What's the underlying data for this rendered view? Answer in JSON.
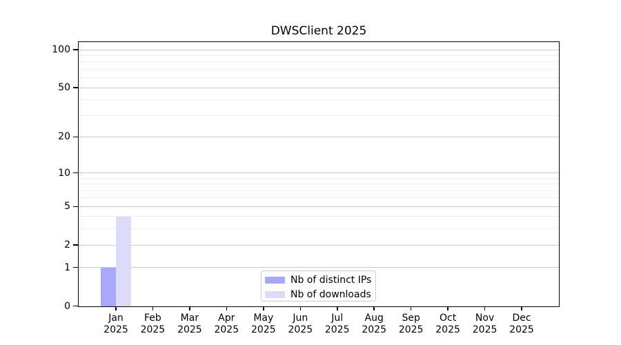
{
  "chart_data": {
    "type": "bar",
    "title": "DWSClient 2025",
    "categories": [
      {
        "month": "Jan",
        "year": "2025"
      },
      {
        "month": "Feb",
        "year": "2025"
      },
      {
        "month": "Mar",
        "year": "2025"
      },
      {
        "month": "Apr",
        "year": "2025"
      },
      {
        "month": "May",
        "year": "2025"
      },
      {
        "month": "Jun",
        "year": "2025"
      },
      {
        "month": "Jul",
        "year": "2025"
      },
      {
        "month": "Aug",
        "year": "2025"
      },
      {
        "month": "Sep",
        "year": "2025"
      },
      {
        "month": "Oct",
        "year": "2025"
      },
      {
        "month": "Nov",
        "year": "2025"
      },
      {
        "month": "Dec",
        "year": "2025"
      }
    ],
    "series": [
      {
        "name": "Nb of distinct IPs",
        "color": "#a8a8f8",
        "values": [
          1,
          0,
          0,
          0,
          0,
          0,
          0,
          0,
          0,
          0,
          0,
          0
        ]
      },
      {
        "name": "Nb of downloads",
        "color": "#dcdcf8",
        "values": [
          4,
          0,
          0,
          0,
          0,
          0,
          0,
          0,
          0,
          0,
          0,
          0
        ]
      }
    ],
    "xlabel": "",
    "ylabel": "",
    "yscale": "log1p",
    "ylim": [
      0,
      114
    ],
    "yticks_major": [
      0,
      1,
      2,
      5,
      10,
      20,
      50,
      100
    ],
    "yticks_minor": [
      3,
      4,
      6,
      7,
      8,
      9,
      30,
      40,
      60,
      70,
      80,
      90
    ],
    "grid": true,
    "legend_position": "lower center"
  },
  "style": {
    "grid_major_color": "#c8c8c8",
    "grid_minor_color": "#ececec",
    "spine_color": "#000000",
    "legend_border_color": "#cccccc",
    "background": "#ffffff",
    "text_color": "#000000"
  }
}
